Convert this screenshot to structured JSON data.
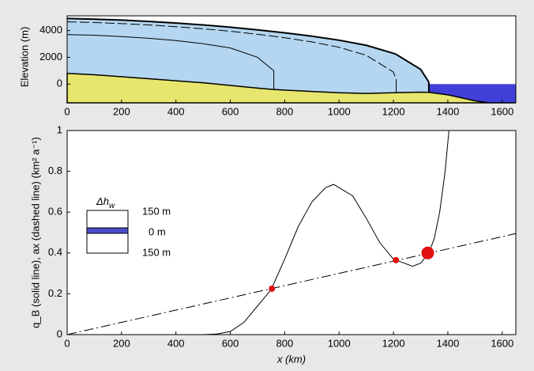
{
  "chart_data": [
    {
      "type": "profile",
      "ylabel": "Elevation (m)",
      "x": [
        0,
        100,
        200,
        300,
        400,
        500,
        600,
        700,
        760,
        800,
        900,
        1000,
        1100,
        1200,
        1210,
        1300,
        1330,
        1400,
        1500,
        1550,
        1650
      ],
      "xlim": [
        0,
        1650
      ],
      "xticks": [
        0,
        200,
        400,
        600,
        800,
        1000,
        1200,
        1400,
        1600
      ],
      "ylim": [
        -1400,
        5100
      ],
      "yticks": [
        0,
        2000,
        4000
      ],
      "sea_level": 0,
      "sea_color": "#4040d8",
      "bed": {
        "color": "#e6e66e",
        "values": [
          800,
          700,
          550,
          400,
          250,
          100,
          -100,
          -300,
          -400,
          -450,
          -550,
          -650,
          -700,
          -650,
          -640,
          -600,
          -620,
          -800,
          -1250,
          -1400,
          -1400
        ]
      },
      "series": [
        {
          "color": "#000000",
          "style": "solid",
          "width": 2,
          "fill": "#b4d6f0",
          "values": [
            4900,
            4850,
            4780,
            4680,
            4560,
            4420,
            4250,
            4050,
            3920,
            3830,
            3580,
            3280,
            2900,
            2300,
            2220,
            1100,
            150,
            null,
            null,
            null,
            null
          ]
        },
        {
          "color": "#000000",
          "style": "dashed",
          "width": 1,
          "values": [
            4650,
            4600,
            4520,
            4420,
            4290,
            4130,
            3950,
            3720,
            3570,
            3460,
            3150,
            2750,
            2150,
            900,
            300,
            null,
            null,
            null,
            null,
            null,
            null
          ]
        },
        {
          "color": "#000000",
          "style": "solid",
          "width": 1,
          "values": [
            3700,
            3650,
            3550,
            3420,
            3250,
            3020,
            2700,
            2000,
            1000,
            null,
            null,
            null,
            null,
            null,
            null,
            null,
            null,
            null,
            null,
            null,
            null
          ]
        }
      ]
    },
    {
      "type": "line",
      "xlabel": "x (km)",
      "ylabel": "q_B (solid line), ax (dashed line) (km² a⁻¹)",
      "xlim": [
        0,
        1650
      ],
      "xticks": [
        0,
        200,
        400,
        600,
        800,
        1000,
        1200,
        1400,
        1600
      ],
      "ylim": [
        0,
        1
      ],
      "yticks": [
        0,
        0.2,
        0.4,
        0.6,
        0.8,
        1
      ],
      "series": [
        {
          "color": "#000000",
          "style": "solid",
          "x": [
            450,
            500,
            550,
            600,
            650,
            700,
            750,
            800,
            850,
            900,
            950,
            980,
            1050,
            1100,
            1150,
            1200,
            1270,
            1300,
            1330,
            1350,
            1370,
            1390,
            1404
          ],
          "values": [
            0,
            0,
            0.003,
            0.015,
            0.06,
            0.14,
            0.22,
            0.37,
            0.53,
            0.65,
            0.72,
            0.736,
            0.68,
            0.57,
            0.45,
            0.37,
            0.335,
            0.35,
            0.4,
            0.47,
            0.6,
            0.8,
            1
          ]
        },
        {
          "color": "#000000",
          "style": "dashed",
          "x": [
            0,
            1650
          ],
          "values": [
            0,
            0.495
          ]
        }
      ],
      "points": {
        "color": "#e01010",
        "x": [
          753,
          1209,
          1326
        ],
        "values": [
          0.225,
          0.365,
          0.4
        ],
        "sizes": [
          1,
          1,
          4
        ]
      },
      "legend": {
        "title": "Δh",
        "title_sub": "w",
        "color": "#4b4bc8",
        "labels": [
          "150 m",
          "0 m",
          "150 m"
        ]
      }
    }
  ]
}
